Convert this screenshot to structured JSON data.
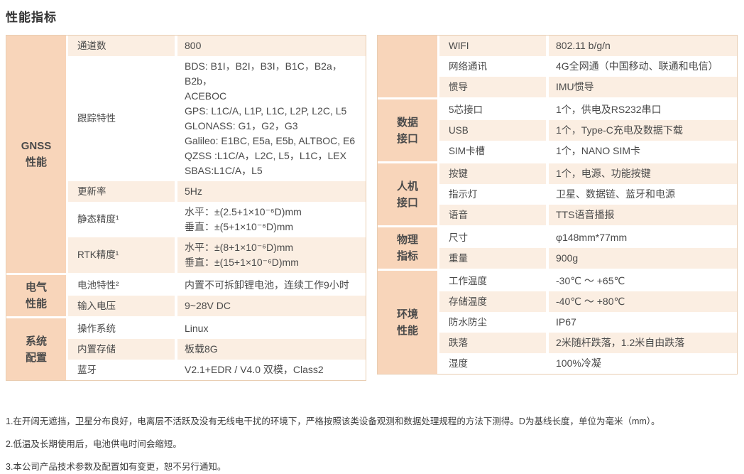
{
  "title": "性能指标",
  "colors": {
    "category_bg": "#f8d5ba",
    "row_light_bg": "#fbeee2",
    "table_border": "#e9cdb2",
    "text": "#4a4a4a",
    "title_text": "#333333"
  },
  "tables": {
    "left": {
      "groups": [
        {
          "category": "GNSS\n性能",
          "rows": [
            {
              "label": "通道数",
              "value": "800"
            },
            {
              "label": "跟踪特性",
              "value": "BDS: B1I，B2I，B3I，B1C，B2a，B2b，\nACEBOC\nGPS: L1C/A, L1P, L1C, L2P, L2C, L5\nGLONASS: G1，G2，G3\nGalileo: E1BC, E5a, E5b, ALTBOC, E6\nQZSS :L1C/A，L2C, L5，L1C，LEX\nSBAS:L1C/A，L5"
            },
            {
              "label": "更新率",
              "value": "5Hz"
            },
            {
              "label": "静态精度¹",
              "value": "水平：±(2.5+1×10⁻⁶D)mm\n垂直：±(5+1×10⁻⁶D)mm"
            },
            {
              "label": "RTK精度¹",
              "value": "水平：±(8+1×10⁻⁶D)mm\n垂直：±(15+1×10⁻⁶D)mm"
            }
          ]
        },
        {
          "category": "电气\n性能",
          "rows": [
            {
              "label": "电池特性²",
              "value": "内置不可拆卸锂电池，连续工作9小时"
            },
            {
              "label": "输入电压",
              "value": "9~28V DC"
            }
          ]
        },
        {
          "category": "系统\n配置",
          "rows": [
            {
              "label": "操作系统",
              "value": "Linux"
            },
            {
              "label": "内置存储",
              "value": "板载8G"
            },
            {
              "label": "蓝牙",
              "value": "V2.1+EDR / V4.0 双模，Class2"
            }
          ]
        }
      ]
    },
    "right": {
      "groups": [
        {
          "category": "",
          "rows": [
            {
              "label": "WIFI",
              "value": "802.11 b/g/n"
            },
            {
              "label": "网络通讯",
              "value": "4G全网通（中国移动、联通和电信）"
            },
            {
              "label": "惯导",
              "value": "IMU惯导"
            }
          ]
        },
        {
          "category": "数据\n接口",
          "rows": [
            {
              "label": "5芯接口",
              "value": "1个，供电及RS232串口"
            },
            {
              "label": "USB",
              "value": "1个，Type-C充电及数据下载"
            },
            {
              "label": "SIM卡槽",
              "value": "1个，NANO SIM卡"
            }
          ]
        },
        {
          "category": "人机\n接口",
          "rows": [
            {
              "label": "按键",
              "value": "1个，电源、功能按键"
            },
            {
              "label": "指示灯",
              "value": "卫星、数据链、蓝牙和电源"
            },
            {
              "label": "语音",
              "value": "TTS语音播报"
            }
          ]
        },
        {
          "category": "物理\n指标",
          "rows": [
            {
              "label": "尺寸",
              "value": "φ148mm*77mm"
            },
            {
              "label": "重量",
              "value": "900g"
            }
          ]
        },
        {
          "category": "环境\n性能",
          "rows": [
            {
              "label": "工作温度",
              "value": "-30℃ ～ +65℃"
            },
            {
              "label": "存储温度",
              "value": "-40℃ ～ +80℃"
            },
            {
              "label": "防水防尘",
              "value": "IP67"
            },
            {
              "label": "跌落",
              "value": "2米随杆跌落，1.2米自由跌落"
            },
            {
              "label": "湿度",
              "value": "100%冷凝"
            }
          ]
        }
      ]
    }
  },
  "footnotes": [
    "1.在开阔无遮挡，卫星分布良好，电离层不活跃及没有无线电干扰的环境下，严格按照该类设备观测和数据处理规程的方法下测得。D为基线长度，单位为毫米（mm）。",
    "2.低温及长期使用后，电池供电时间会缩短。",
    "3.本公司产品技术参数及配置如有变更，恕不另行通知。"
  ]
}
